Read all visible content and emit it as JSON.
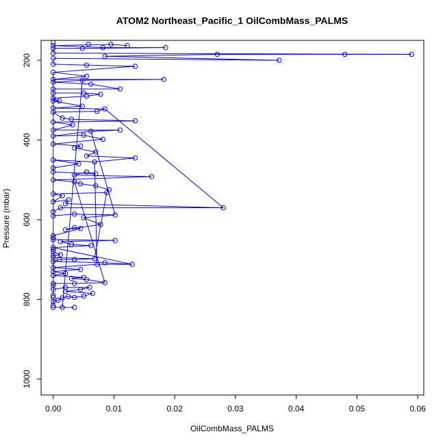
{
  "chart_data": {
    "type": "scatter",
    "title": "ATOM2 Northeast_Pacific_1 OilCombMass_PALMS",
    "xlabel": "OilCombMass_PALMS",
    "ylabel": "Pressure (mbar)",
    "xlim": [
      -0.002,
      0.061
    ],
    "ylim": [
      1040,
      150
    ],
    "y_inverted": true,
    "x_ticks": [
      0.0,
      0.01,
      0.02,
      0.03,
      0.04,
      0.05,
      0.06
    ],
    "x_tick_labels": [
      "0.00",
      "0.01",
      "0.02",
      "0.03",
      "0.04",
      "0.05",
      "0.06"
    ],
    "y_ticks": [
      200,
      400,
      600,
      800,
      1000
    ],
    "y_tick_labels": [
      "200",
      "400",
      "600",
      "800",
      "1000"
    ],
    "grid": false,
    "connected": true,
    "marker": "open-circle",
    "color": "#0000ff",
    "points": [
      {
        "x": 0.0,
        "y": 820
      },
      {
        "x": 0.0015,
        "y": 820
      },
      {
        "x": 0.0035,
        "y": 820
      },
      {
        "x": 0.0,
        "y": 815
      },
      {
        "x": 0.0,
        "y": 805
      },
      {
        "x": 0.0008,
        "y": 802
      },
      {
        "x": 0.0015,
        "y": 796
      },
      {
        "x": 0.0025,
        "y": 793
      },
      {
        "x": 0.0035,
        "y": 795
      },
      {
        "x": 0.005,
        "y": 792
      },
      {
        "x": 0.0065,
        "y": 785
      },
      {
        "x": 0.0,
        "y": 795
      },
      {
        "x": 0.0,
        "y": 790
      },
      {
        "x": 0.002,
        "y": 780
      },
      {
        "x": 0.0045,
        "y": 775
      },
      {
        "x": 0.006,
        "y": 770
      },
      {
        "x": 0.002,
        "y": 770
      },
      {
        "x": 0.0,
        "y": 775
      },
      {
        "x": 0.0,
        "y": 765
      },
      {
        "x": 0.0,
        "y": 760
      },
      {
        "x": 0.0035,
        "y": 760
      },
      {
        "x": 0.0085,
        "y": 758
      },
      {
        "x": 0.0055,
        "y": 750
      },
      {
        "x": 0.003,
        "y": 747
      },
      {
        "x": 0.005,
        "y": 745
      },
      {
        "x": 0.0,
        "y": 740
      },
      {
        "x": 0.002,
        "y": 735
      },
      {
        "x": 0.0,
        "y": 730
      },
      {
        "x": 0.0045,
        "y": 725
      },
      {
        "x": 0.0,
        "y": 720
      },
      {
        "x": 0.0072,
        "y": 712
      },
      {
        "x": 0.013,
        "y": 712
      },
      {
        "x": 0.0085,
        "y": 708
      },
      {
        "x": 0.0,
        "y": 705
      },
      {
        "x": 0.001,
        "y": 700
      },
      {
        "x": 0.0035,
        "y": 700
      },
      {
        "x": 0.0068,
        "y": 698
      },
      {
        "x": 0.0,
        "y": 695
      },
      {
        "x": 0.0,
        "y": 690
      },
      {
        "x": 0.0012,
        "y": 688
      },
      {
        "x": 0.0,
        "y": 680
      },
      {
        "x": 0.0,
        "y": 675
      },
      {
        "x": 0.0,
        "y": 670
      },
      {
        "x": 0.0062,
        "y": 665
      },
      {
        "x": 0.003,
        "y": 662
      },
      {
        "x": 0.0012,
        "y": 655
      },
      {
        "x": 0.0102,
        "y": 652
      },
      {
        "x": 0.0,
        "y": 650
      },
      {
        "x": 0.0,
        "y": 645
      },
      {
        "x": 0.0,
        "y": 640
      },
      {
        "x": 0.0045,
        "y": 622
      },
      {
        "x": 0.0035,
        "y": 620
      },
      {
        "x": 0.002,
        "y": 625
      },
      {
        "x": 0.0078,
        "y": 612
      },
      {
        "x": 0.005,
        "y": 595
      },
      {
        "x": 0.0102,
        "y": 588
      },
      {
        "x": 0.0035,
        "y": 586
      },
      {
        "x": 0.0,
        "y": 590
      },
      {
        "x": 0.0,
        "y": 580
      },
      {
        "x": 0.0012,
        "y": 570
      },
      {
        "x": 0.028,
        "y": 570
      },
      {
        "x": 0.002,
        "y": 560
      },
      {
        "x": 0.0025,
        "y": 550
      },
      {
        "x": 0.0,
        "y": 555
      },
      {
        "x": 0.0015,
        "y": 540
      },
      {
        "x": 0.0,
        "y": 535
      },
      {
        "x": 0.0088,
        "y": 532
      },
      {
        "x": 0.0092,
        "y": 525
      },
      {
        "x": 0.007,
        "y": 515
      },
      {
        "x": 0.0045,
        "y": 510
      },
      {
        "x": 0.0035,
        "y": 505
      },
      {
        "x": 0.0,
        "y": 500
      },
      {
        "x": 0.0162,
        "y": 492
      },
      {
        "x": 0.0035,
        "y": 488
      },
      {
        "x": 0.0055,
        "y": 480
      },
      {
        "x": 0.007,
        "y": 485
      },
      {
        "x": 0.0,
        "y": 480
      },
      {
        "x": 0.0,
        "y": 470
      },
      {
        "x": 0.0042,
        "y": 460
      },
      {
        "x": 0.0,
        "y": 450
      },
      {
        "x": 0.0068,
        "y": 455
      },
      {
        "x": 0.0135,
        "y": 445
      },
      {
        "x": 0.0055,
        "y": 440
      },
      {
        "x": 0.007,
        "y": 430
      },
      {
        "x": 0.0035,
        "y": 420
      },
      {
        "x": 0.0045,
        "y": 415
      },
      {
        "x": 0.0,
        "y": 410
      },
      {
        "x": 0.0082,
        "y": 398
      },
      {
        "x": 0.005,
        "y": 388
      },
      {
        "x": 0.0,
        "y": 390
      },
      {
        "x": 0.0062,
        "y": 378
      },
      {
        "x": 0.011,
        "y": 375
      },
      {
        "x": 0.0,
        "y": 375
      },
      {
        "x": 0.0032,
        "y": 362
      },
      {
        "x": 0.0,
        "y": 355
      },
      {
        "x": 0.0135,
        "y": 352
      },
      {
        "x": 0.003,
        "y": 348
      },
      {
        "x": 0.0015,
        "y": 345
      },
      {
        "x": 0.0,
        "y": 330
      },
      {
        "x": 0.0072,
        "y": 328
      },
      {
        "x": 0.0085,
        "y": 322
      },
      {
        "x": 0.0,
        "y": 320
      },
      {
        "x": 0.0048,
        "y": 315
      },
      {
        "x": 0.0,
        "y": 302
      },
      {
        "x": 0.001,
        "y": 302
      },
      {
        "x": 0.0,
        "y": 295
      },
      {
        "x": 0.0055,
        "y": 290
      },
      {
        "x": 0.0078,
        "y": 285
      },
      {
        "x": 0.005,
        "y": 282
      },
      {
        "x": 0.0,
        "y": 282
      },
      {
        "x": 0.0,
        "y": 272
      },
      {
        "x": 0.011,
        "y": 272
      },
      {
        "x": 0.0062,
        "y": 260
      },
      {
        "x": 0.0,
        "y": 255
      },
      {
        "x": 0.0048,
        "y": 250
      },
      {
        "x": 0.0182,
        "y": 248
      },
      {
        "x": 0.0,
        "y": 248
      },
      {
        "x": 0.0055,
        "y": 240
      },
      {
        "x": 0.0,
        "y": 230
      },
      {
        "x": 0.0135,
        "y": 215
      },
      {
        "x": 0.0055,
        "y": 212
      },
      {
        "x": 0.0,
        "y": 210
      },
      {
        "x": 0.0,
        "y": 195
      },
      {
        "x": 0.0372,
        "y": 200
      },
      {
        "x": 0.0085,
        "y": 190
      },
      {
        "x": 0.027,
        "y": 185
      },
      {
        "x": 0.048,
        "y": 185
      },
      {
        "x": 0.059,
        "y": 185
      },
      {
        "x": 0.0,
        "y": 182
      },
      {
        "x": 0.0,
        "y": 170
      },
      {
        "x": 0.0048,
        "y": 170
      },
      {
        "x": 0.0185,
        "y": 168
      },
      {
        "x": 0.0082,
        "y": 168
      },
      {
        "x": 0.0,
        "y": 163
      },
      {
        "x": 0.0095,
        "y": 160
      },
      {
        "x": 0.0122,
        "y": 163
      },
      {
        "x": 0.0058,
        "y": 160
      },
      {
        "x": 0.0,
        "y": 155
      }
    ],
    "segments": [
      [
        0,
        1
      ],
      [
        1,
        2
      ],
      [
        3,
        4
      ],
      [
        4,
        5
      ],
      [
        5,
        6
      ],
      [
        6,
        7
      ],
      [
        7,
        8
      ],
      [
        8,
        9
      ],
      [
        9,
        10
      ],
      [
        10,
        13
      ],
      [
        13,
        14
      ],
      [
        14,
        15
      ],
      [
        15,
        16
      ],
      [
        16,
        17
      ],
      [
        17,
        18
      ],
      [
        18,
        19
      ],
      [
        19,
        20
      ],
      [
        20,
        21
      ],
      [
        21,
        22
      ],
      [
        22,
        23
      ],
      [
        23,
        24
      ],
      [
        24,
        25
      ],
      [
        25,
        26
      ],
      [
        26,
        27
      ],
      [
        27,
        28
      ],
      [
        28,
        29
      ],
      [
        29,
        30
      ],
      [
        30,
        31
      ],
      [
        31,
        32
      ],
      [
        32,
        33
      ],
      [
        33,
        34
      ],
      [
        34,
        35
      ],
      [
        35,
        36
      ],
      [
        36,
        37
      ],
      [
        37,
        38
      ],
      [
        38,
        39
      ],
      [
        39,
        40
      ],
      [
        40,
        41
      ],
      [
        41,
        42
      ],
      [
        42,
        43
      ],
      [
        43,
        44
      ],
      [
        44,
        45
      ],
      [
        45,
        46
      ],
      [
        46,
        47
      ],
      [
        47,
        48
      ],
      [
        48,
        49
      ],
      [
        49,
        50
      ],
      [
        50,
        51
      ],
      [
        51,
        52
      ],
      [
        52,
        53
      ],
      [
        53,
        54
      ],
      [
        54,
        55
      ],
      [
        55,
        56
      ],
      [
        56,
        57
      ],
      [
        57,
        58
      ],
      [
        58,
        59
      ],
      [
        59,
        60
      ],
      [
        60,
        61
      ],
      [
        61,
        62
      ],
      [
        62,
        63
      ],
      [
        63,
        64
      ],
      [
        64,
        65
      ],
      [
        65,
        66
      ],
      [
        66,
        67
      ],
      [
        67,
        68
      ],
      [
        68,
        69
      ],
      [
        69,
        70
      ],
      [
        70,
        71
      ],
      [
        71,
        72
      ],
      [
        72,
        73
      ],
      [
        73,
        74
      ],
      [
        74,
        75
      ],
      [
        75,
        76
      ],
      [
        76,
        77
      ],
      [
        77,
        78
      ],
      [
        78,
        79
      ],
      [
        79,
        80
      ],
      [
        80,
        81
      ],
      [
        81,
        82
      ],
      [
        82,
        83
      ],
      [
        83,
        84
      ],
      [
        84,
        85
      ],
      [
        85,
        86
      ],
      [
        86,
        87
      ],
      [
        87,
        88
      ],
      [
        88,
        89
      ],
      [
        89,
        90
      ],
      [
        90,
        91
      ],
      [
        91,
        92
      ],
      [
        92,
        93
      ],
      [
        93,
        94
      ],
      [
        94,
        95
      ],
      [
        95,
        96
      ],
      [
        96,
        97
      ],
      [
        97,
        98
      ],
      [
        98,
        99
      ],
      [
        99,
        100
      ],
      [
        100,
        101
      ],
      [
        101,
        102
      ],
      [
        102,
        103
      ],
      [
        103,
        104
      ],
      [
        104,
        105
      ],
      [
        105,
        106
      ],
      [
        106,
        107
      ],
      [
        107,
        108
      ],
      [
        108,
        109
      ],
      [
        109,
        110
      ],
      [
        110,
        111
      ],
      [
        111,
        112
      ],
      [
        112,
        113
      ],
      [
        113,
        114
      ],
      [
        114,
        115
      ],
      [
        115,
        116
      ],
      [
        116,
        117
      ],
      [
        117,
        118
      ],
      [
        118,
        119
      ],
      [
        119,
        120
      ],
      [
        120,
        121
      ],
      [
        121,
        122
      ],
      [
        122,
        123
      ],
      [
        123,
        124
      ],
      [
        124,
        125
      ],
      [
        125,
        126
      ],
      [
        126,
        127
      ],
      [
        127,
        128
      ],
      [
        128,
        129
      ],
      [
        129,
        130
      ],
      [
        130,
        131
      ],
      [
        131,
        132
      ],
      [
        132,
        133
      ],
      [
        133,
        134
      ],
      [
        134,
        135
      ],
      [
        30,
        80
      ],
      [
        55,
        90
      ],
      [
        60,
        100
      ],
      [
        31,
        42
      ],
      [
        21,
        70
      ],
      [
        114,
        1
      ],
      [
        118,
        27
      ],
      [
        36,
        66
      ],
      [
        12,
        40
      ],
      [
        11,
        3
      ]
    ]
  }
}
